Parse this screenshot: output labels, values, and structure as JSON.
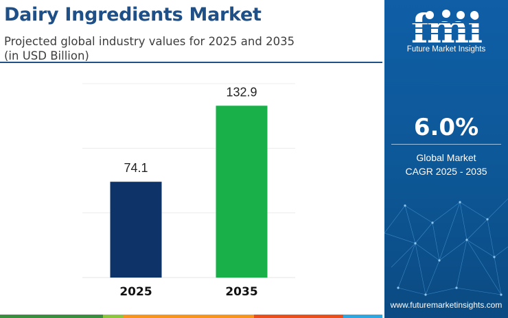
{
  "header": {
    "title": "Dairy Ingredients Market",
    "subtitle_line1": "Projected global industry values for 2025 and 2035",
    "subtitle_line2": "(in USD Billion)"
  },
  "chart_data": {
    "type": "bar",
    "title": "Dairy Ingredients Market",
    "subtitle": "Projected global industry values for 2025 and 2035 (in USD Billion)",
    "categories": [
      "2025",
      "2035"
    ],
    "values": [
      74.1,
      132.9
    ],
    "data_labels": [
      "74.1",
      "132.9"
    ],
    "colors": [
      "#0e3368",
      "#19b04a"
    ],
    "xlabel": "",
    "ylabel": "",
    "ylim": [
      0,
      150
    ],
    "grid": true,
    "legend": "none"
  },
  "brand": {
    "logo_text": "fmi",
    "name": "Future Market Insights",
    "cagr_value": "6.0%",
    "cagr_label_line1": "Global Market",
    "cagr_label_line2": "CAGR 2025 - 2035",
    "website": "www.futuremarketinsights.com"
  },
  "colors": {
    "title": "#1e4f86",
    "panel": "#0f5ea6",
    "strip": [
      "#3a8f3e",
      "#8cc63f",
      "#f7941d",
      "#e94e1b",
      "#2ea6df"
    ]
  }
}
